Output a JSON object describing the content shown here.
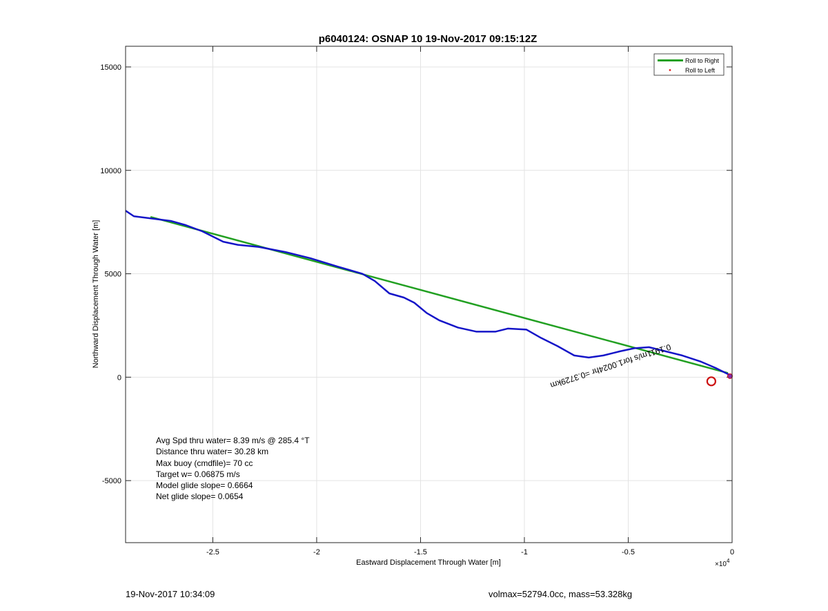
{
  "chart_data": {
    "type": "line",
    "title": "p6040124: OSNAP 10 19-Nov-2017 09:15:12Z",
    "xlabel": "Eastward Displacement Through Water [m]",
    "ylabel": "Northward Displacement Through Water [m]",
    "x_exponent_label": "×10",
    "x_exponent_power": "4",
    "xlim": [
      -29200,
      0
    ],
    "ylim": [
      -8000,
      16000
    ],
    "xticks": [
      -25000,
      -20000,
      -15000,
      -10000,
      -5000,
      0
    ],
    "xtick_labels": [
      "-2.5",
      "-2",
      "-1.5",
      "-1",
      "-0.5",
      "0"
    ],
    "yticks": [
      -5000,
      0,
      5000,
      10000,
      15000
    ],
    "ytick_labels": [
      "-5000",
      "0",
      "5000",
      "10000",
      "15000"
    ],
    "grid": true,
    "legend_position": "top-right",
    "series": [
      {
        "name": "Roll to Right",
        "color": "#22a022",
        "points": [
          [
            -28000,
            7750
          ],
          [
            -200,
            200
          ]
        ]
      },
      {
        "name": "Roll to Left",
        "color": "#e02020",
        "marker": "dot",
        "points": []
      },
      {
        "color": "#1515c8",
        "points": [
          [
            -29200,
            8050
          ],
          [
            -28800,
            7780
          ],
          [
            -28000,
            7680
          ],
          [
            -27000,
            7550
          ],
          [
            -26300,
            7350
          ],
          [
            -25500,
            7050
          ],
          [
            -24500,
            6550
          ],
          [
            -23800,
            6400
          ],
          [
            -22800,
            6300
          ],
          [
            -21500,
            6050
          ],
          [
            -20300,
            5750
          ],
          [
            -19000,
            5350
          ],
          [
            -17800,
            5000
          ],
          [
            -17200,
            4650
          ],
          [
            -16500,
            4050
          ],
          [
            -15800,
            3850
          ],
          [
            -15300,
            3600
          ],
          [
            -14700,
            3100
          ],
          [
            -14100,
            2750
          ],
          [
            -13200,
            2400
          ],
          [
            -12300,
            2200
          ],
          [
            -11400,
            2200
          ],
          [
            -10800,
            2350
          ],
          [
            -9900,
            2300
          ],
          [
            -9200,
            1900
          ],
          [
            -8400,
            1500
          ],
          [
            -7600,
            1050
          ],
          [
            -6900,
            950
          ],
          [
            -6200,
            1050
          ],
          [
            -5400,
            1250
          ],
          [
            -4700,
            1400
          ],
          [
            -4000,
            1450
          ],
          [
            -3200,
            1250
          ],
          [
            -2400,
            1050
          ],
          [
            -1500,
            750
          ],
          [
            -800,
            450
          ],
          [
            -300,
            200
          ],
          [
            -50,
            80
          ]
        ]
      },
      {
        "color": "#cc1010",
        "marker": "circle",
        "points": [
          [
            -1000,
            -200
          ]
        ]
      }
    ],
    "annotations": [
      {
        "text": "0.1911m/s for1.0024hr =0.3729km",
        "x": -3000,
        "y": 1600,
        "rotation_deg": 162,
        "color": "#000000"
      }
    ],
    "stats_text": [
      "Avg Spd thru water=  8.39 m/s @ 285.4 °T",
      "Distance thru water= 30.28 km",
      "Max buoy (cmdfile)= 70 cc",
      "Target w= 0.06875 m/s",
      "Model glide slope= 0.6664",
      "Net glide slope= 0.0654"
    ]
  },
  "footer": {
    "left": "19-Nov-2017 10:34:09",
    "right": "volmax=52794.0cc, mass=53.328kg"
  }
}
